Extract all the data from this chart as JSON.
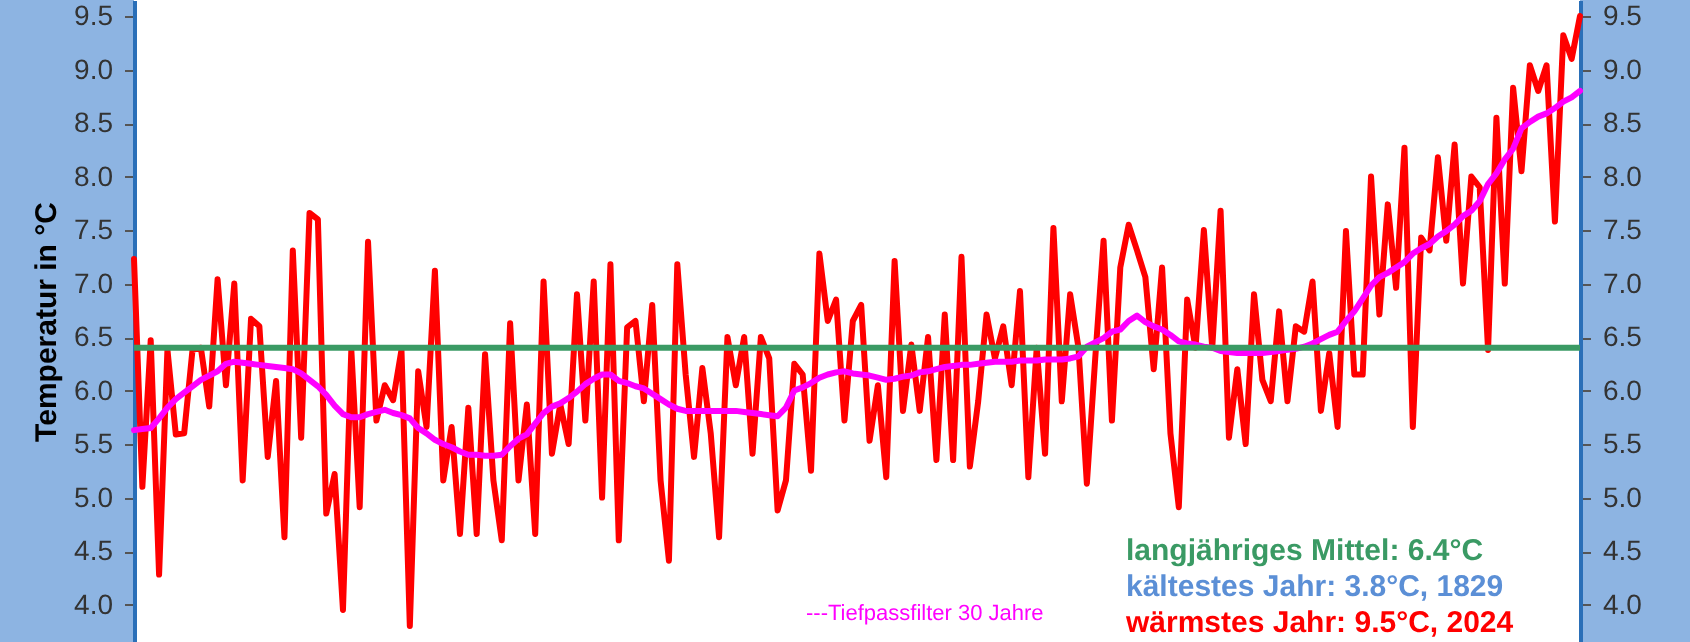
{
  "chart_data": {
    "type": "line",
    "ylabel": "Temperatur in °C",
    "grid": false,
    "categories": [
      null,
      null,
      null,
      null,
      null,
      null,
      null,
      null,
      null,
      null,
      null,
      null,
      null,
      null,
      null,
      null,
      null,
      null,
      null,
      null,
      null,
      null,
      null,
      null,
      null,
      null,
      null,
      null,
      null,
      null,
      null,
      null,
      null,
      null,
      null,
      null,
      null,
      null,
      null,
      null,
      null,
      null,
      null,
      null,
      null,
      null,
      null,
      null,
      null,
      null,
      null,
      null,
      null,
      null,
      null,
      null,
      null,
      null,
      null,
      null,
      null,
      null,
      null,
      null,
      null,
      null,
      null,
      null,
      null,
      null,
      null,
      null,
      null,
      null,
      null,
      null,
      null,
      null,
      null,
      null,
      null,
      null,
      null,
      null,
      null,
      null,
      null,
      null,
      null,
      null,
      null,
      null,
      null,
      null,
      null,
      null,
      null,
      null,
      null,
      null,
      null,
      null,
      null,
      null,
      null,
      null,
      null,
      null,
      null,
      null,
      null,
      null,
      null,
      null,
      null,
      null,
      null,
      null,
      null,
      null,
      null,
      null,
      null,
      null,
      null,
      null,
      null,
      null,
      null,
      null,
      null,
      null,
      null,
      null,
      null,
      null,
      null,
      null,
      null,
      null,
      null,
      null,
      null,
      null,
      null,
      null,
      null,
      null,
      null,
      null,
      null,
      null,
      null,
      null,
      null,
      null,
      null,
      null,
      null,
      null,
      null,
      null,
      null,
      null,
      null,
      null,
      null,
      null,
      null,
      null,
      null,
      null,
      null,
      null
    ],
    "series": [
      {
        "color": "#ff0000",
        "values": [
          7.23,
          5.1,
          6.47,
          4.28,
          6.38,
          5.59,
          5.6,
          6.38,
          6.4,
          5.85,
          7.04,
          6.05,
          7.0,
          5.16,
          6.67,
          6.6,
          5.38,
          6.09,
          4.63,
          7.31,
          5.56,
          7.66,
          7.6,
          4.85,
          5.22,
          3.95,
          6.38,
          4.91,
          7.39,
          5.72,
          6.05,
          5.91,
          6.38,
          3.8,
          6.18,
          5.66,
          7.12,
          5.16,
          5.66,
          4.66,
          5.84,
          4.66,
          6.34,
          5.16,
          4.6,
          6.63,
          5.16,
          5.87,
          4.66,
          7.02,
          5.41,
          5.87,
          5.5,
          6.9,
          5.72,
          7.02,
          5.0,
          7.18,
          4.6,
          6.59,
          6.65,
          5.9,
          6.8,
          5.16,
          4.41,
          7.18,
          6.15,
          5.38,
          6.21,
          5.6,
          4.63,
          6.5,
          6.05,
          6.5,
          5.41,
          6.5,
          6.3,
          4.88,
          5.16,
          6.25,
          6.15,
          5.25,
          7.28,
          6.65,
          6.85,
          5.72,
          6.65,
          6.8,
          5.53,
          6.05,
          5.19,
          7.21,
          5.81,
          6.43,
          5.81,
          6.5,
          5.35,
          6.71,
          5.35,
          7.25,
          5.29,
          5.9,
          6.71,
          6.3,
          6.6,
          6.05,
          6.93,
          5.19,
          6.4,
          5.41,
          7.52,
          5.9,
          6.9,
          6.4,
          5.13,
          6.3,
          7.4,
          5.72,
          7.15,
          7.55,
          7.31,
          7.06,
          6.2,
          7.15,
          5.6,
          4.91,
          6.85,
          6.4,
          7.5,
          6.4,
          7.68,
          5.56,
          6.2,
          5.5,
          6.9,
          6.1,
          5.9,
          6.74,
          5.9,
          6.6,
          6.55,
          7.02,
          5.81,
          6.35,
          5.66,
          7.49,
          6.15,
          6.15,
          8.0,
          6.71,
          7.74,
          6.96,
          8.27,
          5.66,
          7.43,
          7.31,
          8.18,
          7.4,
          8.3,
          7.0,
          8.0,
          7.9,
          6.38,
          8.55,
          7.0,
          8.83,
          8.05,
          9.04,
          8.8,
          9.04,
          7.58,
          9.32,
          9.1,
          9.5
        ]
      },
      {
        "color": "#ff00ff",
        "values": [
          5.63,
          5.64,
          5.65,
          5.74,
          5.84,
          5.92,
          5.98,
          6.04,
          6.1,
          6.14,
          6.18,
          6.25,
          6.27,
          6.26,
          6.25,
          6.24,
          6.23,
          6.22,
          6.21,
          6.2,
          6.16,
          6.1,
          6.04,
          5.96,
          5.86,
          5.78,
          5.75,
          5.75,
          5.78,
          5.8,
          5.82,
          5.79,
          5.77,
          5.74,
          5.65,
          5.6,
          5.54,
          5.5,
          5.47,
          5.43,
          5.4,
          5.4,
          5.39,
          5.39,
          5.4,
          5.48,
          5.55,
          5.59,
          5.69,
          5.79,
          5.85,
          5.88,
          5.93,
          5.99,
          6.06,
          6.11,
          6.15,
          6.15,
          6.09,
          6.07,
          6.04,
          6.02,
          5.97,
          5.92,
          5.87,
          5.83,
          5.81,
          5.81,
          5.81,
          5.81,
          5.81,
          5.81,
          5.81,
          5.8,
          5.79,
          5.78,
          5.77,
          5.76,
          5.84,
          6.0,
          6.03,
          6.07,
          6.12,
          6.15,
          6.17,
          6.18,
          6.16,
          6.15,
          6.14,
          6.12,
          6.1,
          6.11,
          6.13,
          6.14,
          6.17,
          6.18,
          6.2,
          6.22,
          6.23,
          6.24,
          6.24,
          6.25,
          6.26,
          6.27,
          6.27,
          6.27,
          6.28,
          6.28,
          6.28,
          6.29,
          6.29,
          6.29,
          6.3,
          6.32,
          6.41,
          6.45,
          6.49,
          6.55,
          6.57,
          6.65,
          6.7,
          6.64,
          6.6,
          6.57,
          6.52,
          6.46,
          6.44,
          6.43,
          6.41,
          6.4,
          6.37,
          6.36,
          6.35,
          6.35,
          6.35,
          6.35,
          6.36,
          6.37,
          6.38,
          6.39,
          6.41,
          6.44,
          6.48,
          6.52,
          6.55,
          6.65,
          6.74,
          6.86,
          6.98,
          7.06,
          7.1,
          7.15,
          7.2,
          7.28,
          7.33,
          7.37,
          7.44,
          7.49,
          7.55,
          7.63,
          7.68,
          7.77,
          7.93,
          8.03,
          8.16,
          8.26,
          8.45,
          8.51,
          8.56,
          8.59,
          8.64,
          8.7,
          8.74,
          8.8
        ]
      }
    ],
    "ylim": [
      3.65,
      9.65
    ],
    "yticks": [
      {
        "value": 4,
        "label": "4.0"
      },
      {
        "value": 4.5,
        "label": "4.5"
      },
      {
        "value": 5,
        "label": "5.0"
      },
      {
        "value": 5.5,
        "label": "5.5"
      },
      {
        "value": 6,
        "label": "6.0"
      },
      {
        "value": 6.5,
        "label": "6.5"
      },
      {
        "value": 7,
        "label": "7.0"
      },
      {
        "value": 7.5,
        "label": "7.5"
      },
      {
        "value": 8,
        "label": "8.0"
      },
      {
        "value": 8.5,
        "label": "8.5"
      },
      {
        "value": 9,
        "label": "9.0"
      },
      {
        "value": 9.5,
        "label": "9.5"
      }
    ],
    "y2lim": [
      3.65,
      9.65
    ],
    "y2ticks": [
      {
        "value": 4,
        "label": "4.0"
      },
      {
        "value": 4.5,
        "label": "4.5"
      },
      {
        "value": 5,
        "label": "5.0"
      },
      {
        "value": 5.5,
        "label": "5.5"
      },
      {
        "value": 6,
        "label": "6.0"
      },
      {
        "value": 6.5,
        "label": "6.5"
      },
      {
        "value": 7,
        "label": "7.0"
      },
      {
        "value": 7.5,
        "label": "7.5"
      },
      {
        "value": 8,
        "label": "8.0"
      },
      {
        "value": 8.5,
        "label": "8.5"
      },
      {
        "value": 9,
        "label": "9.0"
      },
      {
        "value": 9.5,
        "label": "9.5"
      }
    ],
    "ref_lines": [
      {
        "axis": "y",
        "value": 6.4,
        "label": "langjähriges Mittel: 6.4°C",
        "color": "#3a9a64"
      }
    ],
    "annotations": [
      "---Tiefpassfilter 30 Jahre",
      "kältestes Jahr: 3.8°C, 1829",
      "wärmstes Jahr: 9.5°C, 2024"
    ]
  }
}
